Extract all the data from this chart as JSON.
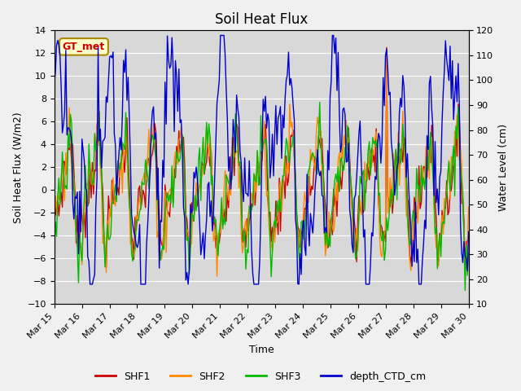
{
  "title": "Soil Heat Flux",
  "xlabel": "Time",
  "ylabel_left": "Soil Heat Flux (W/m2)",
  "ylabel_right": "Water Level (cm)",
  "ylim_left": [
    -10,
    14
  ],
  "ylim_right": [
    10,
    120
  ],
  "yticks_left": [
    -10,
    -8,
    -6,
    -4,
    -2,
    0,
    2,
    4,
    6,
    8,
    10,
    12,
    14
  ],
  "yticks_right": [
    10,
    20,
    30,
    40,
    50,
    60,
    70,
    80,
    90,
    100,
    110,
    120
  ],
  "x_labels": [
    "Mar 15",
    "Mar 16",
    "Mar 17",
    "Mar 18",
    "Mar 19",
    "Mar 20",
    "Mar 21",
    "Mar 22",
    "Mar 23",
    "Mar 24",
    "Mar 25",
    "Mar 26",
    "Mar 27",
    "Mar 28",
    "Mar 29",
    "Mar 30"
  ],
  "colors": {
    "SHF1": "#cc0000",
    "SHF2": "#ff8800",
    "SHF3": "#00bb00",
    "depth_CTD_cm": "#0000cc"
  },
  "fig_bg_color": "#f0f0f0",
  "plot_bg_color": "#d8d8d8",
  "legend_colors": {
    "SHF1": "#cc0000",
    "SHF2": "#ff8800",
    "SHF3": "#00bb00",
    "depth_CTD_cm": "#0000cc"
  },
  "annotation_text": "GT_met",
  "annotation_color": "#cc0000",
  "annotation_bg": "#ffffcc",
  "annotation_border": "#aa8800"
}
